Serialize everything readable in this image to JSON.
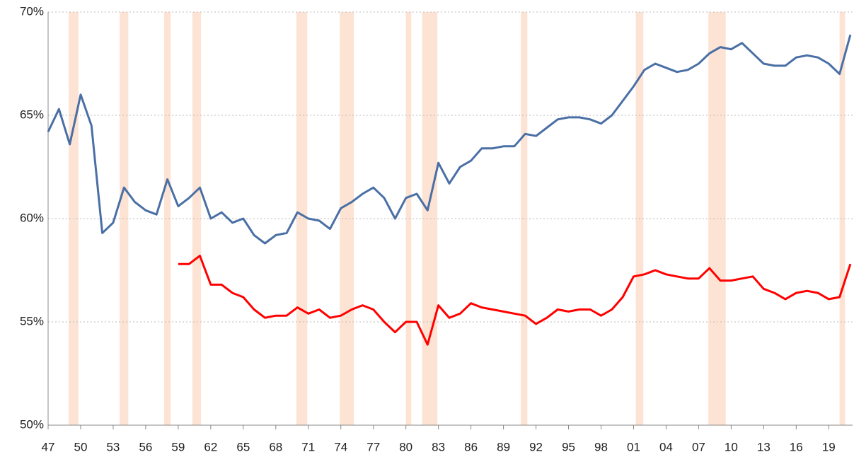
{
  "chart_data": {
    "type": "line",
    "x": [
      1947,
      1948,
      1949,
      1950,
      1951,
      1952,
      1953,
      1954,
      1955,
      1956,
      1957,
      1958,
      1959,
      1960,
      1961,
      1962,
      1963,
      1964,
      1965,
      1966,
      1967,
      1968,
      1969,
      1970,
      1971,
      1972,
      1973,
      1974,
      1975,
      1976,
      1977,
      1978,
      1979,
      1980,
      1981,
      1982,
      1983,
      1984,
      1985,
      1986,
      1987,
      1988,
      1989,
      1990,
      1991,
      1992,
      1993,
      1994,
      1995,
      1996,
      1997,
      1998,
      1999,
      2000,
      2001,
      2002,
      2003,
      2004,
      2005,
      2006,
      2007,
      2008,
      2009,
      2010,
      2011,
      2012,
      2013,
      2014,
      2015,
      2016,
      2017,
      2018,
      2019,
      2020,
      2021
    ],
    "series": [
      {
        "color": "#4a6fa5",
        "values": [
          64.2,
          65.3,
          63.6,
          66.0,
          64.5,
          59.3,
          59.8,
          61.5,
          60.8,
          60.4,
          60.2,
          61.9,
          60.6,
          61.0,
          61.5,
          60.0,
          60.3,
          59.8,
          60.0,
          59.2,
          58.8,
          59.2,
          59.3,
          60.3,
          60.0,
          59.9,
          59.5,
          60.5,
          60.8,
          61.2,
          61.5,
          61.0,
          60.0,
          61.0,
          61.2,
          60.4,
          62.7,
          61.7,
          62.5,
          62.8,
          63.4,
          63.4,
          63.5,
          63.5,
          64.1,
          64.0,
          64.4,
          64.8,
          64.9,
          64.9,
          64.8,
          64.6,
          65.0,
          65.7,
          66.4,
          67.2,
          67.5,
          67.3,
          67.1,
          67.2,
          67.5,
          68.0,
          68.3,
          68.2,
          68.5,
          68.0,
          67.5,
          67.4,
          67.4,
          67.8,
          67.9,
          67.8,
          67.5,
          67.0,
          68.9
        ]
      },
      {
        "color": "#ff0000",
        "values": [
          null,
          null,
          null,
          null,
          null,
          null,
          null,
          null,
          null,
          null,
          null,
          null,
          57.8,
          57.8,
          58.2,
          56.8,
          56.8,
          56.4,
          56.2,
          55.6,
          55.2,
          55.3,
          55.3,
          55.7,
          55.4,
          55.6,
          55.2,
          55.3,
          55.6,
          55.8,
          55.6,
          55.0,
          54.5,
          55.0,
          55.0,
          53.9,
          55.8,
          55.2,
          55.4,
          55.9,
          55.7,
          55.6,
          55.5,
          55.4,
          55.3,
          54.9,
          55.2,
          55.6,
          55.5,
          55.6,
          55.6,
          55.3,
          55.6,
          56.2,
          57.2,
          57.3,
          57.5,
          57.3,
          57.2,
          57.1,
          57.1,
          57.6,
          57.0,
          57.0,
          57.1,
          57.2,
          56.6,
          56.4,
          56.1,
          56.4,
          56.5,
          56.4,
          56.1,
          56.2,
          57.8
        ]
      }
    ],
    "recessions": [
      [
        1948.9,
        1949.8
      ],
      [
        1953.6,
        1954.4
      ],
      [
        1957.7,
        1958.3
      ],
      [
        1960.3,
        1961.1
      ],
      [
        1969.9,
        1970.9
      ],
      [
        1973.9,
        1975.2
      ],
      [
        1980.0,
        1980.5
      ],
      [
        1981.5,
        1982.9
      ],
      [
        1990.6,
        1991.2
      ],
      [
        2001.2,
        2001.9
      ],
      [
        2007.9,
        2009.5
      ],
      [
        2020.0,
        2020.5
      ]
    ],
    "recession_color": "#fde3d3",
    "xlim": [
      1947,
      2021.2
    ],
    "ylim": [
      50,
      70
    ],
    "xticks": [
      {
        "value": 1947,
        "label": "47"
      },
      {
        "value": 1950,
        "label": "50"
      },
      {
        "value": 1953,
        "label": "53"
      },
      {
        "value": 1956,
        "label": "56"
      },
      {
        "value": 1959,
        "label": "59"
      },
      {
        "value": 1962,
        "label": "62"
      },
      {
        "value": 1965,
        "label": "65"
      },
      {
        "value": 1968,
        "label": "68"
      },
      {
        "value": 1971,
        "label": "71"
      },
      {
        "value": 1974,
        "label": "74"
      },
      {
        "value": 1977,
        "label": "77"
      },
      {
        "value": 1980,
        "label": "80"
      },
      {
        "value": 1983,
        "label": "83"
      },
      {
        "value": 1986,
        "label": "86"
      },
      {
        "value": 1989,
        "label": "89"
      },
      {
        "value": 1992,
        "label": "92"
      },
      {
        "value": 1995,
        "label": "95"
      },
      {
        "value": 1998,
        "label": "98"
      },
      {
        "value": 2001,
        "label": "01"
      },
      {
        "value": 2004,
        "label": "04"
      },
      {
        "value": 2007,
        "label": "07"
      },
      {
        "value": 2010,
        "label": "10"
      },
      {
        "value": 2013,
        "label": "13"
      },
      {
        "value": 2016,
        "label": "16"
      },
      {
        "value": 2019,
        "label": "19"
      }
    ],
    "yticks": [
      {
        "value": 50,
        "label": "50%"
      },
      {
        "value": 55,
        "label": "55%"
      },
      {
        "value": 60,
        "label": "60%"
      },
      {
        "value": 65,
        "label": "65%"
      },
      {
        "value": 70,
        "label": "70%"
      }
    ],
    "grid": true
  }
}
